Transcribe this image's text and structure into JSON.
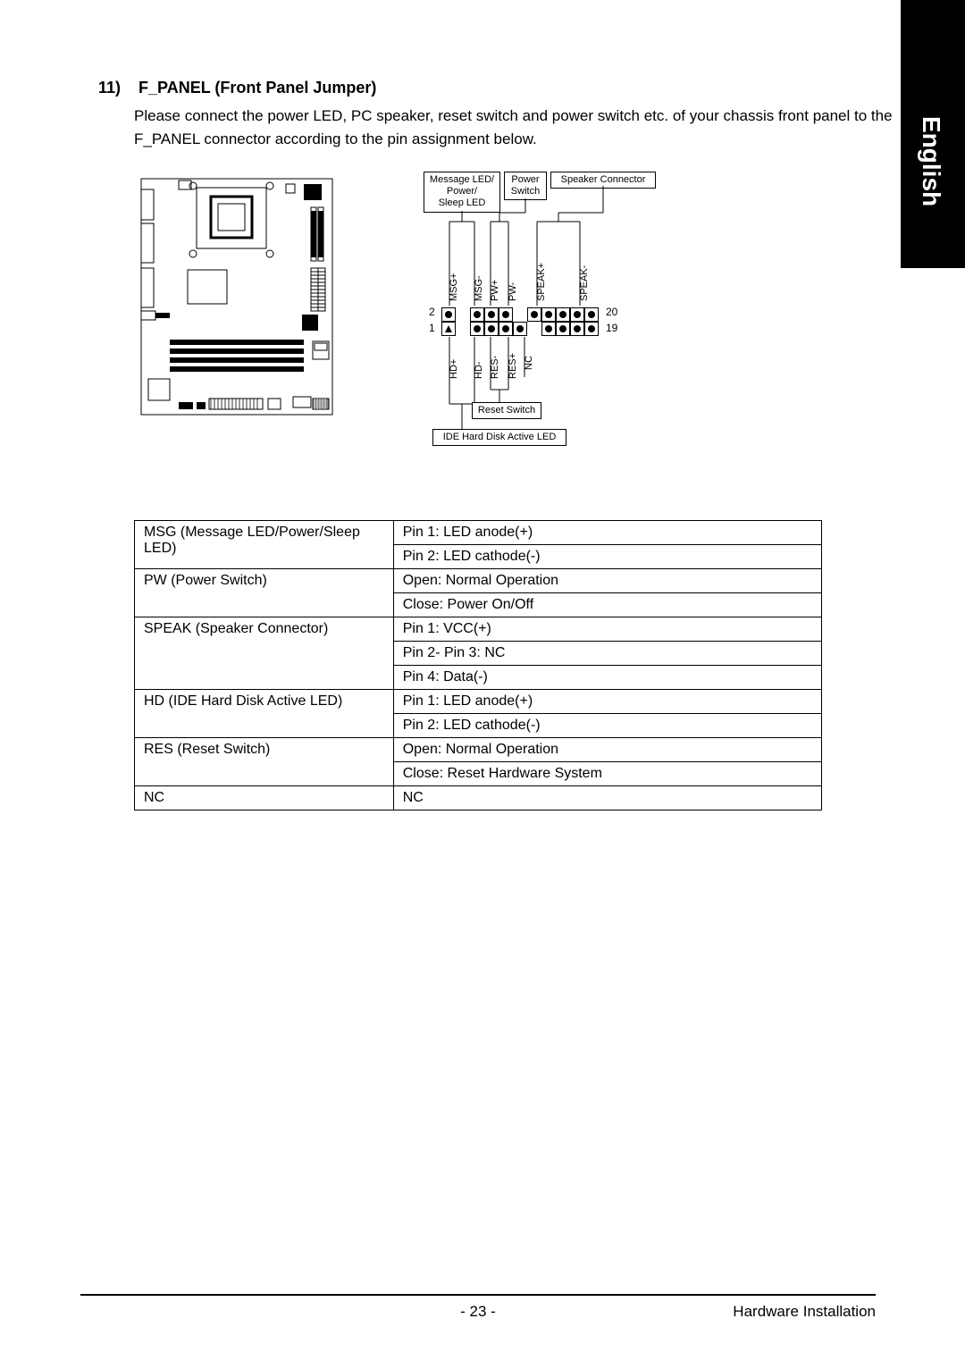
{
  "language_tab": "English",
  "section": {
    "number": "11)",
    "title": "F_PANEL (Front Panel Jumper)"
  },
  "description": "Please connect the power LED, PC speaker, reset switch and power switch etc. of your chassis front panel to the F_PANEL connector according to the pin assignment below.",
  "pinout": {
    "top_labels": {
      "msg": "Message LED/\nPower/\nSleep LED",
      "pw": "Power\nSwitch",
      "speak": "Speaker Connector"
    },
    "bottom_labels": {
      "reset": "Reset Switch",
      "hd": "IDE Hard Disk Active LED"
    },
    "top_pins": [
      "MSG+",
      "MSG-",
      "PW+",
      "PW-",
      "SPEAK+",
      "SPEAK-"
    ],
    "bottom_pins": [
      "HD+",
      "HD-",
      "RES-",
      "RES+",
      "NC"
    ],
    "pin_nums": {
      "top_left": "2",
      "bottom_left": "1",
      "top_right": "20",
      "bottom_right": "19"
    },
    "header_pins_per_row": 10,
    "colors": {
      "border": "#000000",
      "text": "#000000",
      "background": "#ffffff"
    }
  },
  "table_rows": [
    {
      "label": "MSG (Message LED/Power/Sleep LED)",
      "values": [
        "Pin 1: LED anode(+)",
        "Pin 2: LED cathode(-)"
      ]
    },
    {
      "label": "PW (Power Switch)",
      "values": [
        "Open: Normal Operation",
        "Close: Power On/Off"
      ]
    },
    {
      "label": "SPEAK (Speaker Connector)",
      "values": [
        "Pin 1: VCC(+)",
        "Pin 2- Pin 3: NC",
        "Pin 4: Data(-)"
      ]
    },
    {
      "label": "HD (IDE Hard Disk Active LED)",
      "values": [
        "Pin 1: LED anode(+)",
        "Pin 2: LED cathode(-)"
      ]
    },
    {
      "label": "RES (Reset Switch)",
      "values": [
        "Open: Normal Operation",
        "Close: Reset Hardware System"
      ]
    },
    {
      "label": "NC",
      "values": [
        "NC"
      ]
    }
  ],
  "footer": {
    "page": "- 23 -",
    "section": "Hardware Installation"
  }
}
